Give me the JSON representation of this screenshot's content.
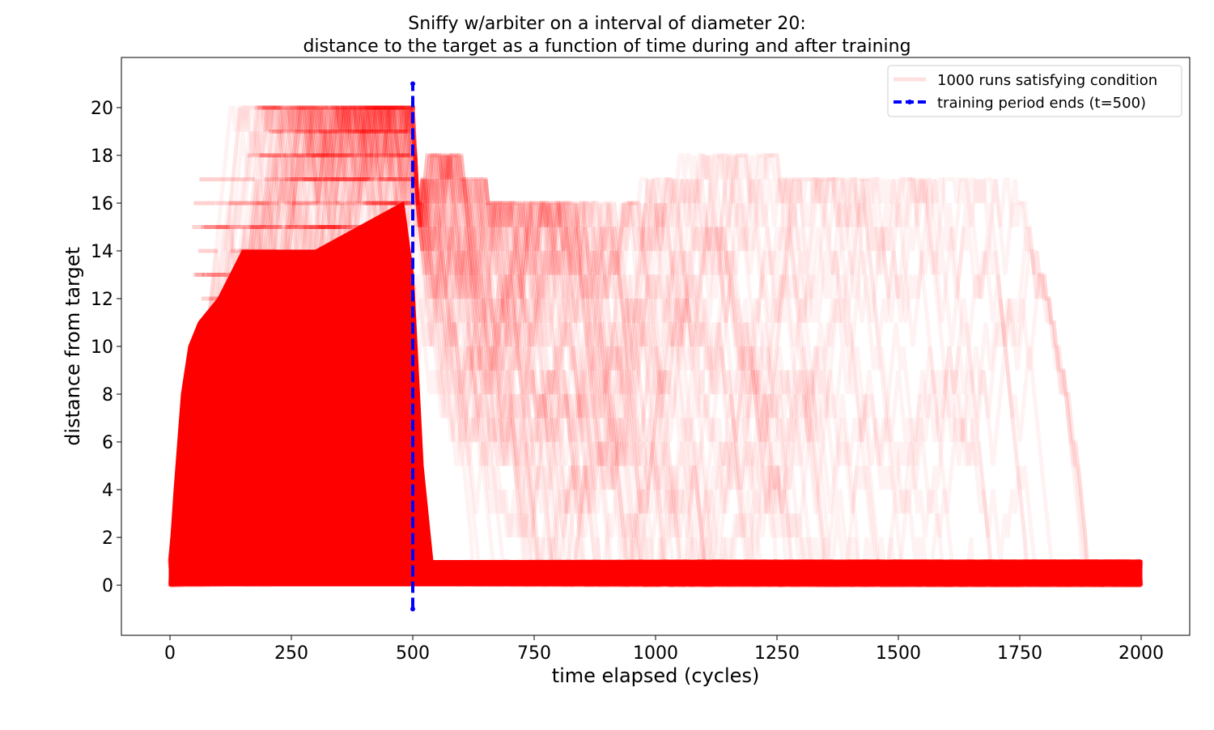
{
  "chart_data": {
    "type": "line",
    "title": "Sniffy w/arbiter on a interval of diameter 20:",
    "subtitle": "distance to the target as a function of time during and after training",
    "xlabel": "time elapsed (cycles)",
    "ylabel": "distance from target",
    "xlim": [
      -100,
      2100
    ],
    "ylim": [
      -2.1,
      22.1
    ],
    "xticks": [
      0,
      250,
      500,
      750,
      1000,
      1250,
      1500,
      1750,
      2000
    ],
    "yticks": [
      0,
      2,
      4,
      6,
      8,
      10,
      12,
      14,
      16,
      18,
      20
    ],
    "grid": false,
    "legend_position": "top-right",
    "colors": {
      "runs": "#ff0000",
      "training_end": "#0000ff"
    },
    "series": [
      {
        "name": "1000 runs satisfying condition",
        "kind": "runs-envelope",
        "run_count": 1000,
        "opacity": 0.05,
        "dense_band": [
          {
            "x": 0,
            "y": 0
          },
          {
            "x": 0,
            "y": 1
          },
          {
            "x": 10,
            "y": 4
          },
          {
            "x": 25,
            "y": 8
          },
          {
            "x": 40,
            "y": 10
          },
          {
            "x": 60,
            "y": 11
          },
          {
            "x": 100,
            "y": 12
          },
          {
            "x": 150,
            "y": 14
          },
          {
            "x": 300,
            "y": 14
          },
          {
            "x": 480,
            "y": 16
          },
          {
            "x": 500,
            "y": 13
          },
          {
            "x": 520,
            "y": 5
          },
          {
            "x": 540,
            "y": 1
          },
          {
            "x": 2000,
            "y": 1
          },
          {
            "x": 2000,
            "y": 0
          }
        ],
        "sparse_max": [
          {
            "x": 0,
            "y": 1
          },
          {
            "x": 20,
            "y": 6
          },
          {
            "x": 50,
            "y": 15
          },
          {
            "x": 70,
            "y": 19
          },
          {
            "x": 120,
            "y": 20
          },
          {
            "x": 500,
            "y": 20
          },
          {
            "x": 510,
            "y": 16
          },
          {
            "x": 530,
            "y": 18
          },
          {
            "x": 600,
            "y": 18
          },
          {
            "x": 700,
            "y": 16
          },
          {
            "x": 900,
            "y": 16
          },
          {
            "x": 1040,
            "y": 18
          },
          {
            "x": 1250,
            "y": 18
          },
          {
            "x": 1500,
            "y": 17
          },
          {
            "x": 1730,
            "y": 18
          },
          {
            "x": 1760,
            "y": 16
          },
          {
            "x": 1800,
            "y": 13
          },
          {
            "x": 1850,
            "y": 8
          },
          {
            "x": 1880,
            "y": 4
          },
          {
            "x": 1900,
            "y": 1
          }
        ]
      },
      {
        "name": "training period ends (t=500)",
        "kind": "vertical-line",
        "x": [
          500,
          500
        ],
        "y": [
          -1,
          21
        ]
      }
    ]
  }
}
